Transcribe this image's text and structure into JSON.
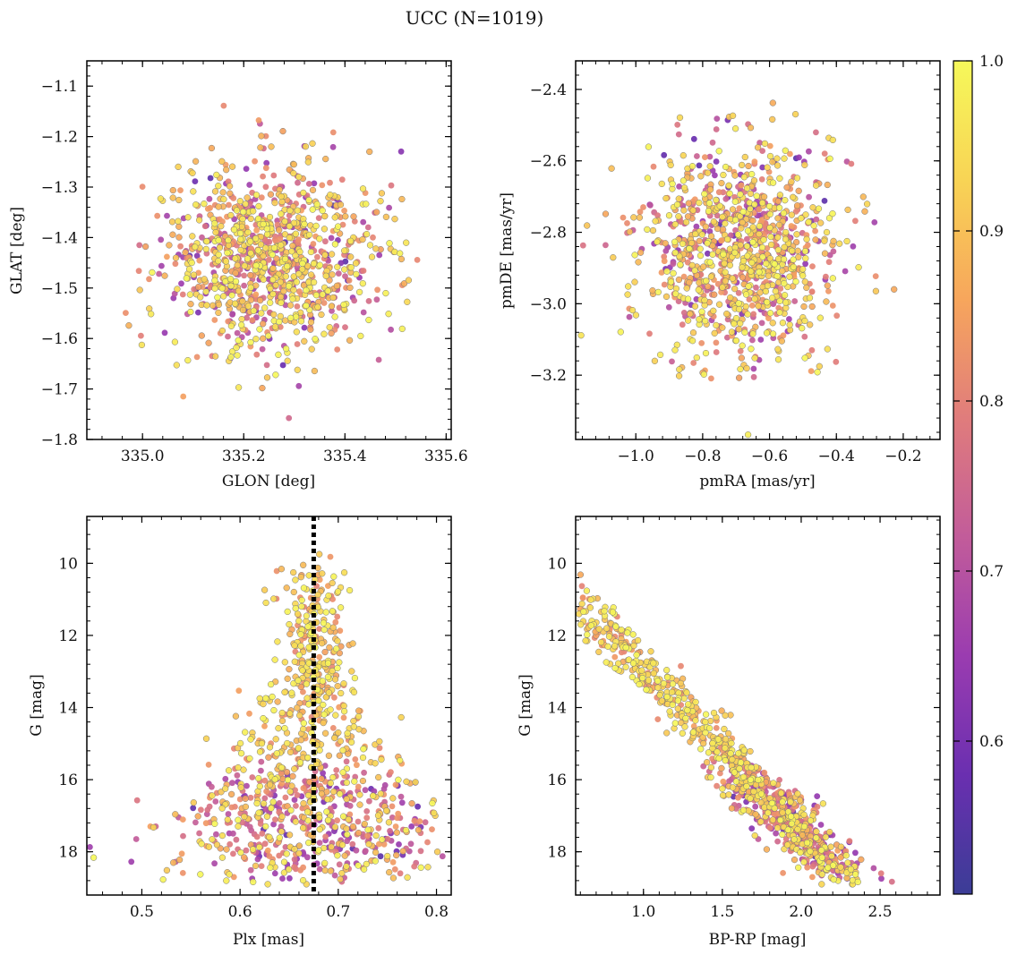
{
  "title": "UCC (N=1019)",
  "chart_data": [
    {
      "type": "scatter",
      "id": "glon-glat",
      "xlabel": "GLON [deg]",
      "ylabel": "GLAT [deg]",
      "xlim": [
        334.89,
        335.61
      ],
      "ylim": [
        -1.8,
        -1.05
      ],
      "xticks": [
        335.0,
        335.2,
        335.4,
        335.6
      ],
      "xtick_labels": [
        "335.0",
        "335.2",
        "335.4",
        "335.6"
      ],
      "yticks": [
        -1.1,
        -1.2,
        -1.3,
        -1.4,
        -1.5,
        -1.6,
        -1.7,
        -1.8
      ],
      "ytick_labels": [
        "−1.1",
        "−1.2",
        "−1.3",
        "−1.4",
        "−1.5",
        "−1.6",
        "−1.7",
        "−1.8"
      ],
      "color_by": "membership probability",
      "n_points": 1019,
      "cluster": {
        "center": [
          335.25,
          -1.44
        ],
        "spread": [
          0.12,
          0.11
        ]
      }
    },
    {
      "type": "scatter",
      "id": "pmra-pmde",
      "xlabel": "pmRA [mas/yr]",
      "ylabel": "pmDE [mas/yr]",
      "xlim": [
        -1.18,
        -0.09
      ],
      "ylim": [
        -3.38,
        -2.32
      ],
      "xticks": [
        -1.0,
        -0.8,
        -0.6,
        -0.4,
        -0.2
      ],
      "xtick_labels": [
        "−1.0",
        "−0.8",
        "−0.6",
        "−0.4",
        "−0.2"
      ],
      "yticks": [
        -2.4,
        -2.6,
        -2.8,
        -3.0,
        -3.2
      ],
      "ytick_labels": [
        "−2.4",
        "−2.6",
        "−2.8",
        "−3.0",
        "−3.2"
      ],
      "color_by": "membership probability",
      "n_points": 1019,
      "cluster": {
        "center": [
          -0.68,
          -2.85
        ],
        "spread": [
          0.17,
          0.17
        ]
      }
    },
    {
      "type": "scatter",
      "id": "plx-g",
      "xlabel": "Plx [mas]",
      "ylabel": "G [mag]",
      "xlim": [
        0.444,
        0.815
      ],
      "ylim": [
        19.2,
        8.7
      ],
      "y_inverted": true,
      "xticks": [
        0.5,
        0.6,
        0.7,
        0.8
      ],
      "xtick_labels": [
        "0.5",
        "0.6",
        "0.7",
        "0.8"
      ],
      "yticks": [
        10,
        12,
        14,
        16,
        18
      ],
      "ytick_labels": [
        "10",
        "12",
        "14",
        "16",
        "18"
      ],
      "vline": {
        "x": 0.675,
        "style": "dotted",
        "color": "#000000"
      },
      "color_by": "membership probability",
      "n_points": 1019
    },
    {
      "type": "scatter",
      "id": "bprp-g",
      "xlabel": "BP-RP [mag]",
      "ylabel": "G [mag]",
      "xlim": [
        0.57,
        2.88
      ],
      "ylim": [
        19.2,
        8.7
      ],
      "y_inverted": true,
      "xticks": [
        1.0,
        1.5,
        2.0,
        2.5
      ],
      "xtick_labels": [
        "1.0",
        "1.5",
        "2.0",
        "2.5"
      ],
      "yticks": [
        10,
        12,
        14,
        16,
        18
      ],
      "ytick_labels": [
        "10",
        "12",
        "14",
        "16",
        "18"
      ],
      "color_by": "membership probability",
      "n_points": 1019
    }
  ],
  "colorbar": {
    "range": [
      0.51,
      1.0
    ],
    "ticks": [
      0.6,
      0.7,
      0.8,
      0.9,
      1.0
    ],
    "tick_labels": [
      "0.6",
      "0.7",
      "0.8",
      "0.9",
      "1.0"
    ],
    "colormap": "plasma",
    "stops": [
      "#3b3d96",
      "#6a2fb0",
      "#9a3cb0",
      "#c25c9a",
      "#e07c7c",
      "#f7a65c",
      "#f8d455",
      "#f6f85a"
    ]
  }
}
